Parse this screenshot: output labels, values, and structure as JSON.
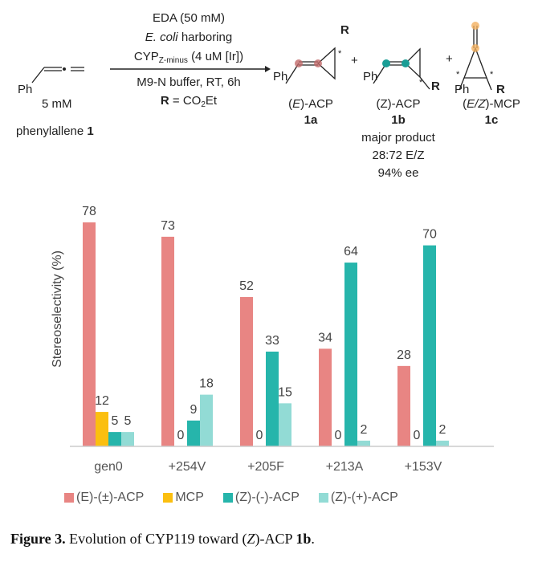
{
  "scheme": {
    "conditions": {
      "line1": "EDA (50 mM)",
      "line2_italic": "E. coli",
      "line2_rest": " harboring",
      "line3_main": "CYP",
      "line3_sub": "Z-minus",
      "line3_rest": " (4 uM [Ir])",
      "line4": "M9-N buffer, RT, 6h",
      "line5_bold": "R",
      "line5_a": " = CO",
      "line5_sub": "2",
      "line5_b": "Et"
    },
    "reactant": {
      "ph": "Ph",
      "conc": "5 mM",
      "name": "phenylallene ",
      "number": "1"
    },
    "products": [
      {
        "ph": "Ph",
        "r": "R",
        "label_pre": "(",
        "label_it": "E",
        "label_post": ")-ACP",
        "number": "1a",
        "dot_color": "#c26a6a"
      },
      {
        "ph": "Ph",
        "r": "R",
        "label_pre": "(",
        "label_it": "Z",
        "label_post": ")-ACP",
        "number": "1b",
        "dot_color": "#1a9e96",
        "notes": [
          "major product",
          "28:72 E/Z",
          "94% ee"
        ]
      },
      {
        "ph": "Ph",
        "r": "R",
        "label_pre": "(",
        "label_it": "E/Z",
        "label_post": ")-MCP",
        "number": "1c",
        "dot_color": "#f2b060"
      }
    ],
    "plus": "+",
    "star": "*"
  },
  "chart_data": {
    "type": "bar",
    "ylabel": "Stereoselectivity (%)",
    "xlabel": "",
    "categories": [
      "gen0",
      "+254V",
      "+205F",
      "+213A",
      "+153V"
    ],
    "ylim": [
      0,
      80
    ],
    "grid": false,
    "legend_position": "bottom",
    "series": [
      {
        "name": "(E)-(±)-ACP",
        "color": "#e88583",
        "values": [
          78,
          73,
          52,
          34,
          28
        ]
      },
      {
        "name": "MCP",
        "color": "#fbbf10",
        "values": [
          12,
          0,
          0,
          0,
          0
        ]
      },
      {
        "name": "(Z)-(-)-ACP",
        "color": "#26b5ab",
        "values": [
          5,
          9,
          33,
          64,
          70
        ]
      },
      {
        "name": "(Z)-(+)-ACP",
        "color": "#92dbd5",
        "values": [
          5,
          18,
          15,
          2,
          2
        ]
      }
    ]
  },
  "caption": {
    "label": "Figure 3.",
    "text_a": " Evolution of CYP119 toward (",
    "text_it": "Z",
    "text_b": ")-ACP ",
    "compound": "1b",
    "text_c": "."
  }
}
